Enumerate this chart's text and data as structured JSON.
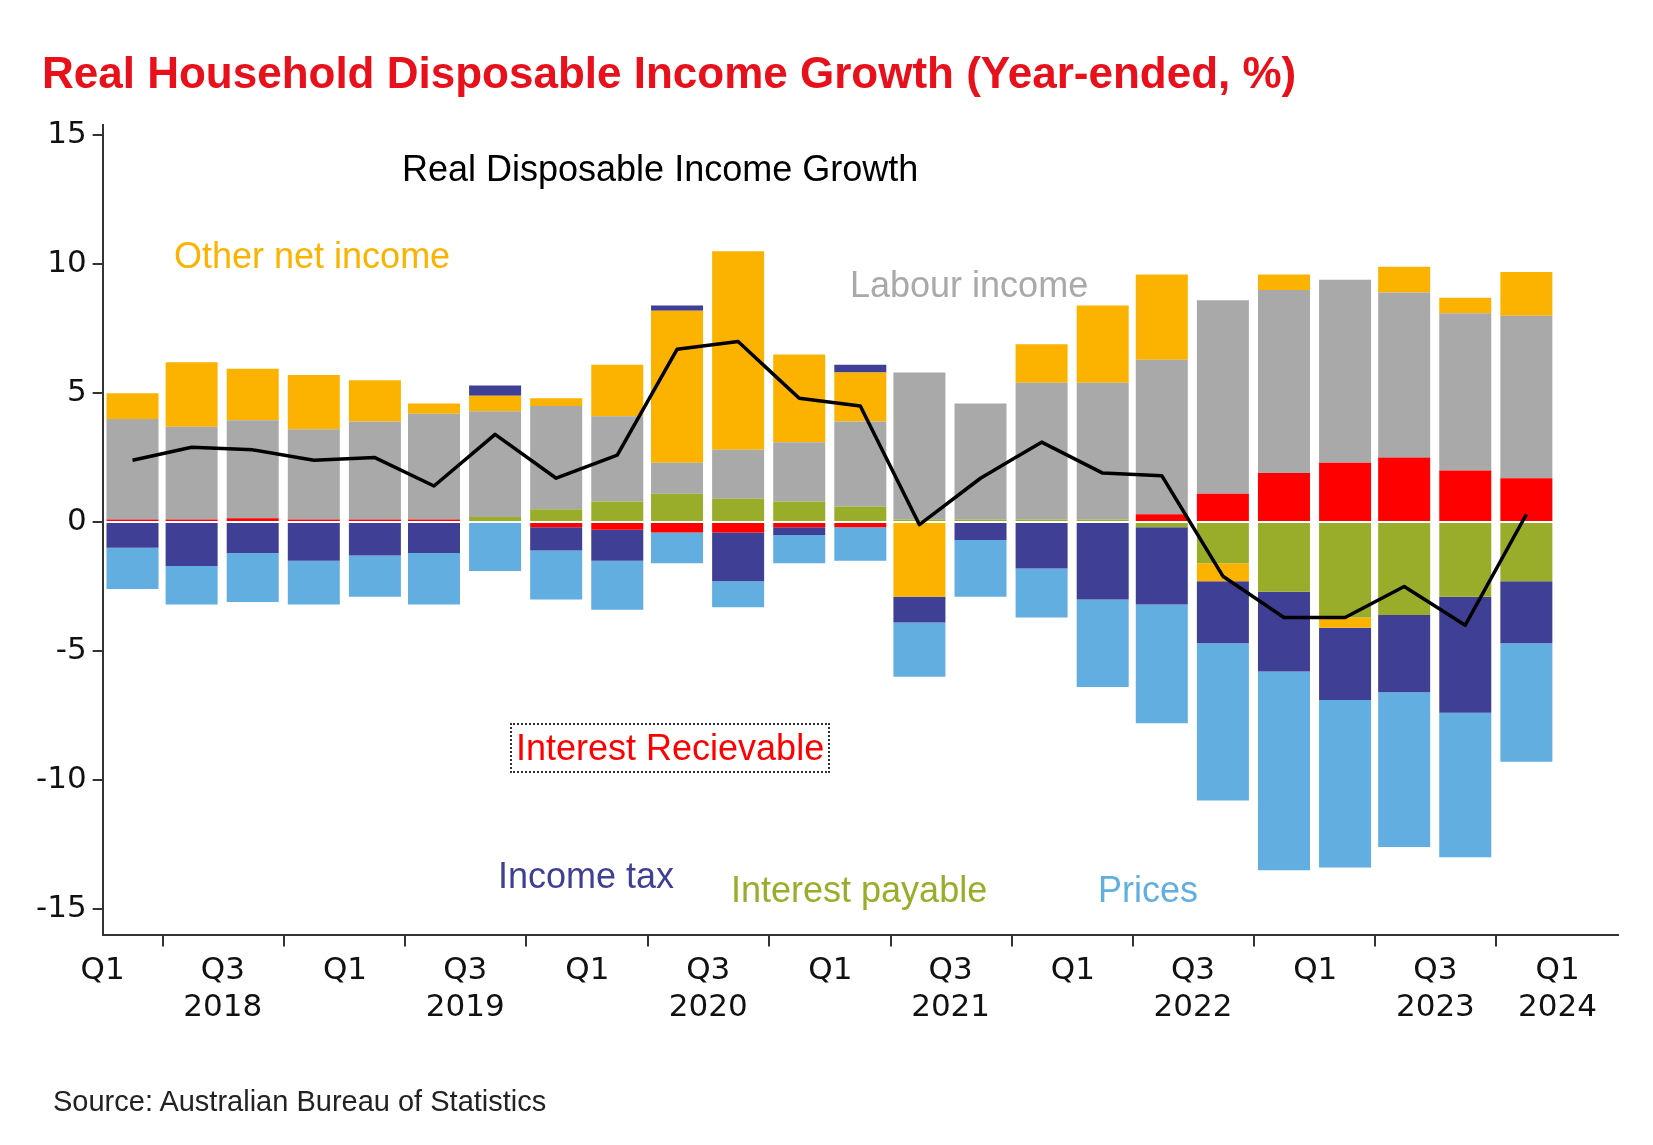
{
  "chart_data": {
    "type": "bar",
    "title": "Real Household Disposable Income Growth (Year-ended, %)",
    "stacked": true,
    "x": [
      "2018-02-15",
      "2018-05-15",
      "2018-08-15",
      "2018-11-15",
      "2019-02-15",
      "2019-05-15",
      "2019-08-15",
      "2019-11-15",
      "2020-02-15",
      "2020-05-15",
      "2020-08-15",
      "2020-11-15",
      "2021-02-15",
      "2021-05-15",
      "2021-08-15",
      "2021-11-15",
      "2022-02-15",
      "2022-05-15",
      "2022-08-15",
      "2022-11-15",
      "2023-02-15",
      "2023-05-15",
      "2023-08-15",
      "2023-11-15"
    ],
    "series": [
      {
        "name": "Interest Recievable",
        "color": "#ff0000",
        "values": [
          0.1,
          0.1,
          0.15,
          0.1,
          0.1,
          0.1,
          0,
          -0.2,
          -0.3,
          -0.4,
          -0.4,
          -0.2,
          -0.2,
          0,
          0,
          0,
          0,
          0.3,
          1.1,
          1.9,
          2.3,
          2.5,
          2.0,
          1.7
        ]
      },
      {
        "name": "Interest payable",
        "color": "#9aad2a",
        "values": [
          0,
          0,
          0,
          0,
          0,
          0,
          0.2,
          0.5,
          0.8,
          1.1,
          0.9,
          0.8,
          0.6,
          0.1,
          0.1,
          0.1,
          0.1,
          -0.2,
          -1.6,
          -2.7,
          -3.7,
          -3.6,
          -2.9,
          -2.3
        ]
      },
      {
        "name": "Labour income",
        "color": "#a9a9a9",
        "values": [
          3.9,
          3.6,
          3.8,
          3.5,
          3.8,
          4.1,
          4.1,
          4.0,
          3.3,
          1.2,
          1.9,
          2.3,
          3.3,
          5.7,
          4.5,
          5.3,
          5.3,
          6.0,
          7.5,
          7.1,
          7.1,
          6.4,
          6.1,
          6.3
        ]
      },
      {
        "name": "Other net income",
        "color": "#fbb300",
        "values": [
          1.0,
          2.5,
          2.0,
          2.1,
          1.6,
          0.4,
          0.6,
          0.3,
          2.0,
          5.9,
          7.7,
          3.4,
          1.9,
          -2.9,
          0,
          1.5,
          3.0,
          3.3,
          -0.7,
          0.6,
          -0.4,
          1.0,
          0.6,
          1.7
        ]
      },
      {
        "name": "Income tax",
        "color": "#3f3f96",
        "values": [
          -1.0,
          -1.7,
          -1.2,
          -1.5,
          -1.3,
          -1.2,
          0.4,
          -0.9,
          -1.2,
          0.2,
          -1.9,
          -0.3,
          0.3,
          -1.0,
          -0.7,
          -1.8,
          -3.0,
          -3.0,
          -2.4,
          -3.1,
          -2.8,
          -3.0,
          -4.5,
          -2.4
        ]
      },
      {
        "name": "Prices",
        "color": "#62aee0",
        "values": [
          -1.6,
          -1.5,
          -1.9,
          -1.7,
          -1.6,
          -2.0,
          -1.9,
          -1.9,
          -1.9,
          -1.2,
          -1.0,
          -1.1,
          -1.3,
          -2.1,
          -2.2,
          -1.9,
          -3.4,
          -4.6,
          -6.1,
          -7.7,
          -6.5,
          -6.0,
          -5.6,
          -4.6
        ]
      },
      {
        "name": "Real Disposable Income Growth",
        "type": "line",
        "color": "#000000",
        "values": [
          2.4,
          2.9,
          2.8,
          2.4,
          2.5,
          1.4,
          3.4,
          1.7,
          2.6,
          6.7,
          7.0,
          4.8,
          4.5,
          -0.1,
          1.7,
          3.1,
          1.9,
          1.8,
          -2.1,
          -3.7,
          -3.7,
          -2.5,
          -4.0,
          0.3
        ]
      }
    ],
    "xlim": [
      "2018-01-01",
      "2024-04-01"
    ],
    "xticks": [
      {
        "value": "2018-01-01",
        "label": "Q1"
      },
      {
        "value": "2018-07-01",
        "label": "Q3\n2018"
      },
      {
        "value": "2019-01-01",
        "label": "Q1"
      },
      {
        "value": "2019-07-01",
        "label": "Q3\n2019"
      },
      {
        "value": "2020-01-01",
        "label": "Q1"
      },
      {
        "value": "2020-07-01",
        "label": "Q3\n2020"
      },
      {
        "value": "2021-01-01",
        "label": "Q1"
      },
      {
        "value": "2021-07-01",
        "label": "Q3\n2021"
      },
      {
        "value": "2022-01-01",
        "label": "Q1"
      },
      {
        "value": "2022-07-01",
        "label": "Q3\n2022"
      },
      {
        "value": "2023-01-01",
        "label": "Q1"
      },
      {
        "value": "2023-07-01",
        "label": "Q3\n2023"
      },
      {
        "value": "2024-01-01",
        "label": "Q1\n2024"
      }
    ],
    "ylim": [
      -16,
      15.4
    ],
    "yticks": [
      -15,
      -10,
      -5,
      0,
      5,
      10,
      15
    ],
    "grid": false,
    "legend": false,
    "annotations": [
      "Source: Australian Bureau of Statistics"
    ]
  }
}
